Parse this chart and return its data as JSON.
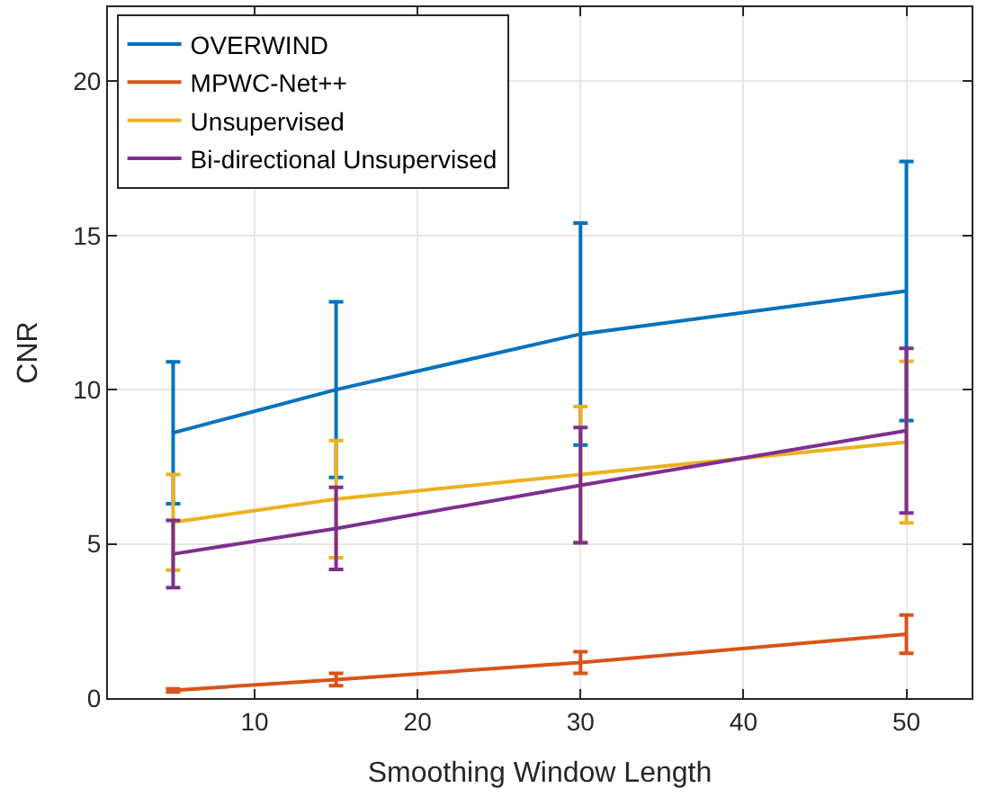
{
  "chart_data": {
    "type": "line",
    "xlabel": "Smoothing Window Length",
    "ylabel": "CNR",
    "x": [
      5,
      15,
      30,
      50
    ],
    "series": [
      {
        "name": "OVERWIND",
        "color": "#0072bd",
        "values": [
          8.6,
          10.0,
          11.8,
          13.2
        ],
        "errors": [
          2.3,
          2.85,
          3.6,
          4.2
        ]
      },
      {
        "name": "MPWC-Net++",
        "color": "#d95319",
        "values": [
          0.25,
          0.6,
          1.15,
          2.07
        ],
        "errors": [
          0.05,
          0.2,
          0.35,
          0.62
        ]
      },
      {
        "name": "Unsupervised",
        "color": "#edb120",
        "values": [
          5.7,
          6.45,
          7.25,
          8.3
        ],
        "errors": [
          1.55,
          1.9,
          2.2,
          2.62
        ]
      },
      {
        "name": "Bi-directional Unsupervised",
        "color": "#7e2f8e",
        "values": [
          4.67,
          5.5,
          6.9,
          8.67
        ],
        "errors": [
          1.09,
          1.33,
          1.87,
          2.67
        ]
      }
    ],
    "xlim": [
      1,
      54
    ],
    "ylim": [
      0,
      22.4
    ],
    "xticks": [
      10,
      20,
      30,
      40,
      50
    ],
    "yticks": [
      0,
      5,
      10,
      15,
      20
    ],
    "grid": true,
    "legend": "top left",
    "line_style": "solid"
  }
}
